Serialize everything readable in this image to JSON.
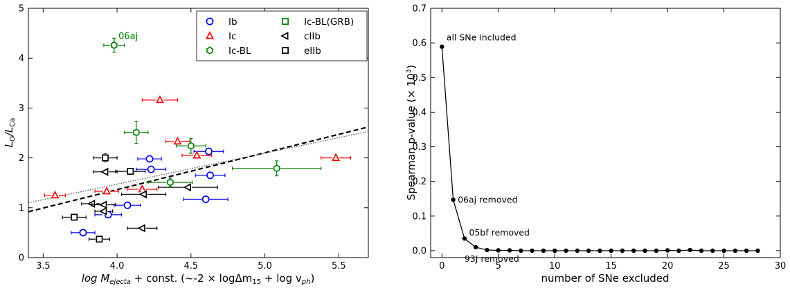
{
  "chart_data": [
    {
      "type": "scatter",
      "title": "",
      "xlabel_main": "log M",
      "xlabel_sub": "ejecta",
      "xlabel_rest": " + const. (~-2 × logΔm",
      "xlabel_sub2": "15",
      "xlabel_mid": " + log v",
      "xlabel_sub3": "ph",
      "xlabel_end": ")",
      "ylabel_main": "L",
      "ylabel_sub1": "O",
      "ylabel_slash": "/L",
      "ylabel_sub2": "Ca",
      "xlim": [
        3.4,
        5.7
      ],
      "ylim": [
        0,
        5
      ],
      "xticks": [
        3.5,
        4.0,
        4.5,
        5.0,
        5.5
      ],
      "xtick_labels": [
        "3.5",
        "4.0",
        "4.5",
        "5.0",
        "5.5"
      ],
      "yticks": [
        0,
        1,
        2,
        3,
        4,
        5
      ],
      "ytick_labels": [
        "0",
        "1",
        "2",
        "3",
        "4",
        "5"
      ],
      "legend_position": "top-right",
      "series": [
        {
          "name": "Ib",
          "marker": "circle",
          "color": "#0000ff",
          "points": [
            [
              4.22,
              1.98,
              0.08,
              0
            ],
            [
              4.23,
              1.77,
              0.1,
              0
            ],
            [
              4.62,
              2.13,
              0.1,
              0
            ],
            [
              4.63,
              1.65,
              0.1,
              0
            ],
            [
              4.07,
              1.05,
              0.09,
              0
            ],
            [
              3.94,
              0.86,
              0.09,
              0
            ],
            [
              4.6,
              1.17,
              0.15,
              0
            ],
            [
              3.77,
              0.5,
              0.08,
              0
            ]
          ]
        },
        {
          "name": "Ic",
          "marker": "triangle-up",
          "color": "#ff0000",
          "points": [
            [
              4.29,
              3.16,
              0.12,
              0.05
            ],
            [
              4.41,
              2.33,
              0.08,
              0.06
            ],
            [
              4.54,
              2.05,
              0.1,
              0.06
            ],
            [
              5.48,
              2.0,
              0.1,
              0.05
            ],
            [
              4.17,
              1.37,
              0.1,
              0.06
            ],
            [
              3.93,
              1.33,
              0.08,
              0.05
            ],
            [
              3.58,
              1.25,
              0.07,
              0.05
            ]
          ]
        },
        {
          "name": "Ic-BL",
          "marker": "hexagon",
          "color": "#008000",
          "points": [
            [
              3.98,
              4.26,
              0.07,
              0.14
            ],
            [
              4.13,
              2.51,
              0.08,
              0.22
            ],
            [
              4.5,
              2.24,
              0.1,
              0.15
            ],
            [
              5.08,
              1.79,
              0.3,
              0.15
            ],
            [
              4.36,
              1.51,
              0.15,
              0.08
            ]
          ]
        },
        {
          "name": "Ic-BL(GRB)",
          "marker": "square",
          "color": "#008000",
          "points": []
        },
        {
          "name": "cIIb",
          "marker": "triangle-left",
          "color": "#000000",
          "points": [
            [
              3.92,
              1.72,
              0.08,
              0.06
            ],
            [
              4.48,
              1.41,
              0.2,
              0
            ],
            [
              4.18,
              1.27,
              0.15,
              0
            ],
            [
              3.83,
              1.08,
              0.07,
              0
            ],
            [
              3.91,
              1.06,
              0.08,
              0
            ],
            [
              3.91,
              0.93,
              0.06,
              0
            ],
            [
              4.17,
              0.59,
              0.1,
              0
            ]
          ]
        },
        {
          "name": "eIIb",
          "marker": "square",
          "color": "#000000",
          "points": [
            [
              3.92,
              2.0,
              0.08,
              0.08
            ],
            [
              4.09,
              1.73,
              0.1,
              0.06
            ],
            [
              3.71,
              0.81,
              0.08,
              0.06
            ],
            [
              3.88,
              0.37,
              0.07,
              0
            ]
          ]
        }
      ],
      "fit_lines": [
        {
          "style": "dashed",
          "x": [
            3.4,
            5.7
          ],
          "y": [
            0.92,
            2.62
          ]
        },
        {
          "style": "dotted",
          "x": [
            3.4,
            5.7
          ],
          "y": [
            1.1,
            2.53
          ]
        }
      ],
      "annotations": [
        {
          "text": "06aj",
          "x": 4.0,
          "y": 4.33,
          "color": "#008000"
        }
      ]
    },
    {
      "type": "line",
      "title": "",
      "xlabel": "number of SNe excluded",
      "ylabel_main": "Spearman p-value (",
      "ylabel_times": "× 10",
      "ylabel_exp": "3",
      "ylabel_close": ")",
      "xlim": [
        -1,
        30
      ],
      "ylim": [
        -0.02,
        0.7
      ],
      "xticks": [
        0,
        5,
        10,
        15,
        20,
        25,
        30
      ],
      "xtick_labels": [
        "0",
        "5",
        "10",
        "15",
        "20",
        "25",
        "30"
      ],
      "yticks": [
        0.0,
        0.1,
        0.2,
        0.3,
        0.4,
        0.5,
        0.6,
        0.7
      ],
      "ytick_labels": [
        "0.0",
        "0.1",
        "0.2",
        "0.3",
        "0.4",
        "0.5",
        "0.6",
        "0.7"
      ],
      "x": [
        0,
        1,
        2,
        3,
        4,
        5,
        6,
        7,
        8,
        9,
        10,
        11,
        12,
        13,
        14,
        15,
        16,
        17,
        18,
        19,
        20,
        21,
        22,
        23,
        24,
        25,
        26,
        27,
        28
      ],
      "y": [
        0.589,
        0.147,
        0.035,
        0.01,
        0.002,
        0.001,
        0.001,
        0.0,
        0.0,
        0.0,
        0.0,
        0.0,
        0.0,
        0.0,
        0.0,
        0.0,
        0.0,
        0.0,
        0.0,
        0.0,
        0.001,
        0.0,
        0.002,
        0.0,
        0.0,
        0.0,
        0.0,
        0.0,
        0.0
      ],
      "annotations": [
        {
          "text": "all SNe included",
          "x": 0.4,
          "y": 0.615
        },
        {
          "text": "06aj removed",
          "x": 1.4,
          "y": 0.147
        },
        {
          "text": "05bf removed",
          "x": 2.4,
          "y": 0.052
        },
        {
          "text": "93J removed",
          "x": 2.0,
          "y": -0.024
        }
      ]
    }
  ]
}
